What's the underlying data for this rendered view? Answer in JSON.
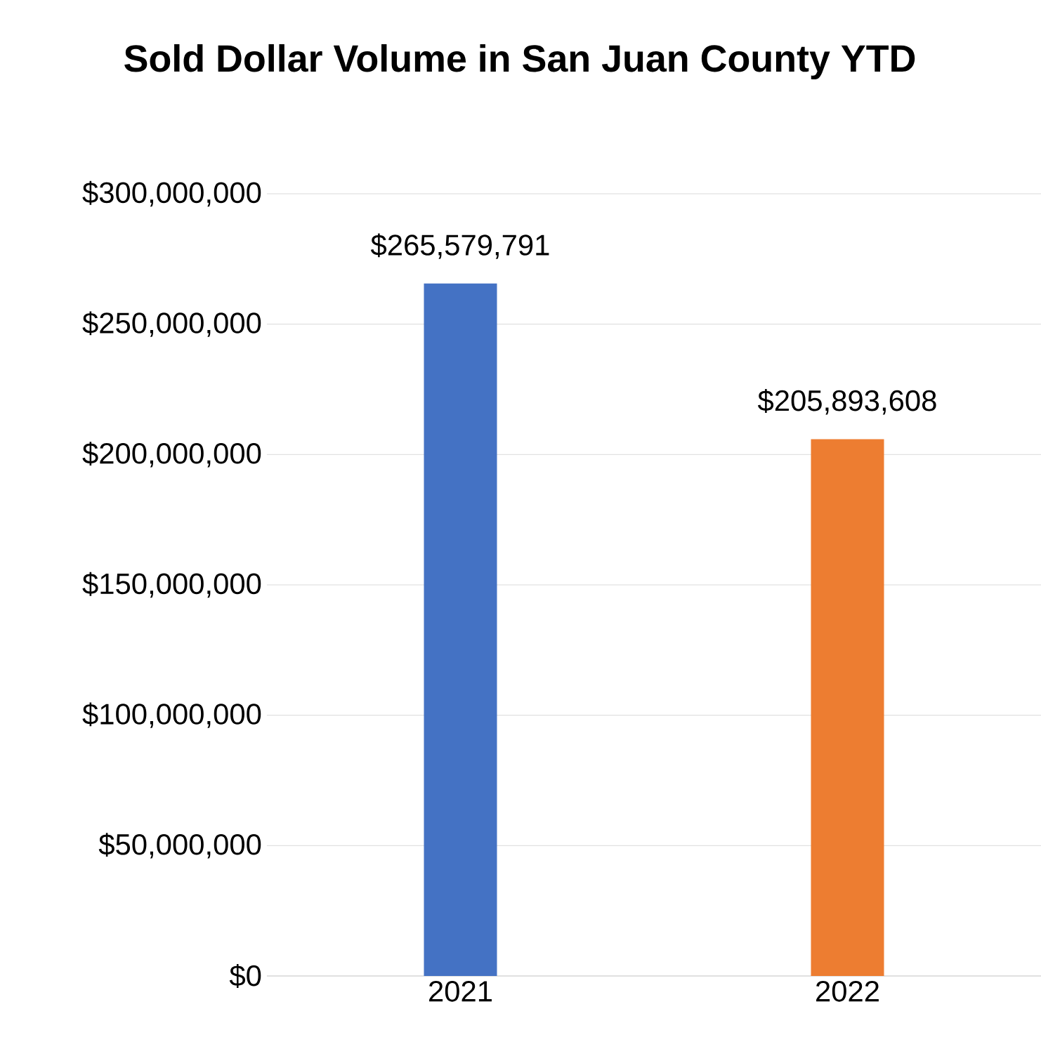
{
  "chart_data": {
    "type": "bar",
    "title": "Sold Dollar Volume in San Juan County YTD",
    "categories": [
      "2021",
      "2022"
    ],
    "values": [
      265579791,
      205893608
    ],
    "colors": [
      "#4472c4",
      "#ed7d31"
    ],
    "value_labels": [
      "$265,579,791",
      "$205,893,608"
    ],
    "ylim": [
      0,
      300000000
    ],
    "yticks": [
      {
        "value": 0,
        "label": "$0"
      },
      {
        "value": 50000000,
        "label": "$50,000,000"
      },
      {
        "value": 100000000,
        "label": "$100,000,000"
      },
      {
        "value": 150000000,
        "label": "$150,000,000"
      },
      {
        "value": 200000000,
        "label": "$200,000,000"
      },
      {
        "value": 250000000,
        "label": "$250,000,000"
      },
      {
        "value": 300000000,
        "label": "$300,000,000"
      }
    ],
    "grid": "y"
  }
}
